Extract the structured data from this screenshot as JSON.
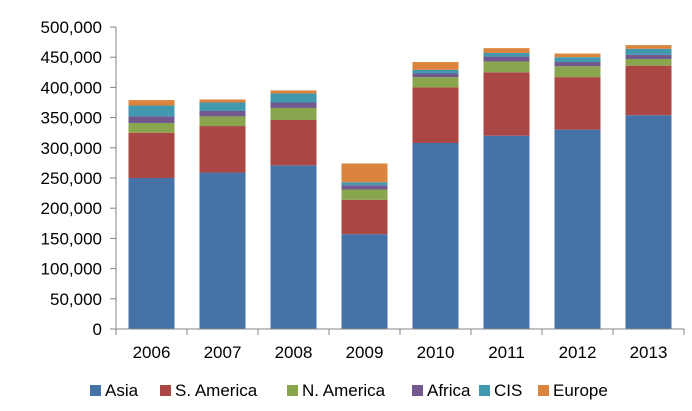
{
  "chart_data": {
    "type": "bar",
    "stacked": true,
    "title": "",
    "xlabel": "",
    "ylabel": "",
    "ylim": [
      0,
      500000
    ],
    "yticks": [
      0,
      50000,
      100000,
      150000,
      200000,
      250000,
      300000,
      350000,
      400000,
      450000,
      500000
    ],
    "ytick_labels": [
      "0",
      "50,000",
      "100,000",
      "150,000",
      "200,000",
      "250,000",
      "300,000",
      "350,000",
      "400,000",
      "450,000",
      "500,000"
    ],
    "grid": false,
    "legend_position": "bottom",
    "categories": [
      "2006",
      "2007",
      "2008",
      "2009",
      "2010",
      "2011",
      "2012",
      "2013"
    ],
    "series": [
      {
        "name": "Asia",
        "color": "#4572A7",
        "values": [
          250000,
          259000,
          271000,
          157000,
          308000,
          320000,
          330000,
          354000
        ]
      },
      {
        "name": "S. America",
        "color": "#AA4643",
        "values": [
          75000,
          77000,
          75000,
          57000,
          92000,
          105000,
          87000,
          82000
        ]
      },
      {
        "name": "N. America",
        "color": "#89A54E",
        "values": [
          16000,
          16000,
          20000,
          17000,
          17000,
          18000,
          18000,
          11000
        ]
      },
      {
        "name": "Africa",
        "color": "#71588F",
        "values": [
          11000,
          9000,
          9000,
          7000,
          6000,
          8000,
          7000,
          7000
        ]
      },
      {
        "name": "CIS",
        "color": "#4198AF",
        "values": [
          18000,
          14000,
          15000,
          5000,
          6000,
          6000,
          8000,
          10000
        ]
      },
      {
        "name": "Europe",
        "color": "#DB843D",
        "values": [
          9000,
          5000,
          5000,
          31000,
          13000,
          8000,
          6000,
          6000
        ]
      }
    ]
  }
}
